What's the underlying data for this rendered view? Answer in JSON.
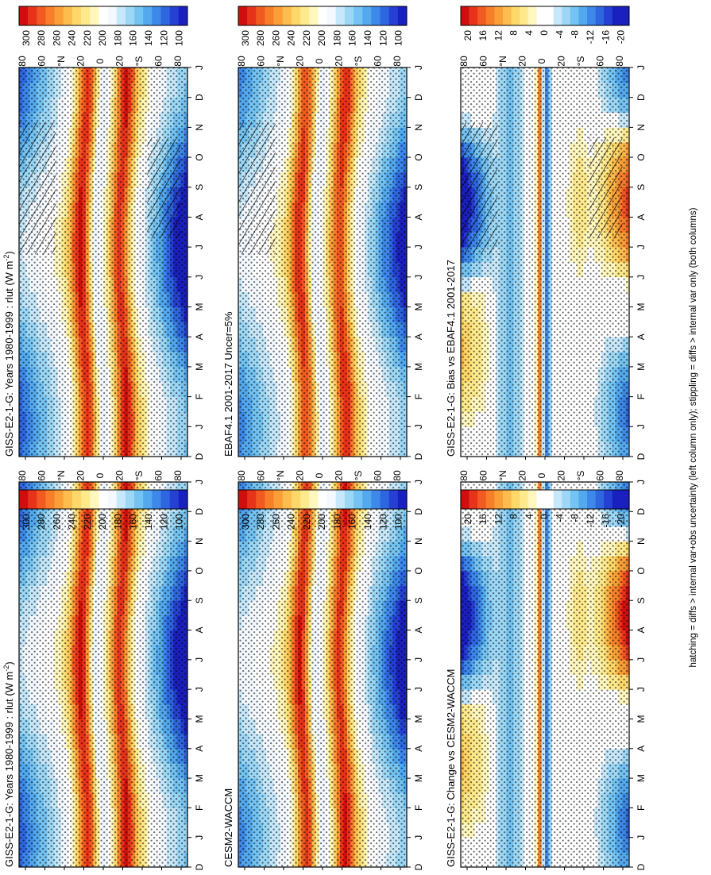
{
  "footnote": "hatching = diffs > internal var+obs uncertainty (left column only); stippling = diffs > internal var only (both columns)",
  "shared": {
    "months": [
      "D",
      "J",
      "F",
      "M",
      "A",
      "M",
      "J",
      "J",
      "A",
      "S",
      "O",
      "N",
      "D",
      "J"
    ],
    "lat_ticks": [
      "80",
      "60",
      "°N",
      "20",
      "0",
      "20",
      "°S",
      "60",
      "80"
    ]
  },
  "colorbars": {
    "absolute": {
      "ticks": [
        "300",
        "280",
        "260",
        "240",
        "220",
        "200",
        "180",
        "160",
        "140",
        "120",
        "100"
      ],
      "colors": [
        "#d10e0e",
        "#e8331b",
        "#f25a21",
        "#f77f2a",
        "#fa9f38",
        "#fcbc4e",
        "#fdd769",
        "#feea8d",
        "#fff7bd",
        "#ffffff",
        "#f3f9ff",
        "#c6e8fa",
        "#9cd8f6",
        "#74c3f2",
        "#53a8ee",
        "#3d88e8",
        "#2e66df",
        "#2540d2",
        "#1a1fbf"
      ]
    },
    "difference": {
      "ticks": [
        "20",
        "16",
        "12",
        "8",
        "4",
        "0",
        "-4",
        "-8",
        "-12",
        "-16",
        "-20"
      ],
      "colors": [
        "#d10e0e",
        "#e8331b",
        "#f25a21",
        "#f77f2a",
        "#fa9f38",
        "#fcbc4e",
        "#fdd769",
        "#feea8d",
        "#fff7bd",
        "#ffffff",
        "#ffffff",
        "#c6e8fa",
        "#9cd8f6",
        "#74c3f2",
        "#53a8ee",
        "#3d88e8",
        "#2e66df",
        "#2540d2",
        "#1a1fbf",
        "#1a1fbf"
      ]
    }
  },
  "chart_data": [
    {
      "type": "heatmap",
      "title": "GISS-E2-1-G: Years 1980-1999 : rlut (W m",
      "units_sup": "-2",
      "title_suffix": ")",
      "x_axis": "latitude (80°N to 80°S)",
      "y_axis": "month (D to J)",
      "colorbar": "absolute",
      "hatching": "Jul-Nov over ~60-80°N and ~65-85°S; scattered elsewhere",
      "stippling": "most of the domain",
      "approx_values": {
        "tropics_jul": 290,
        "tropics_jan": 285,
        "arctic_jan": 165,
        "antarctic_aug": 130,
        "equator_annual": 235
      }
    },
    {
      "type": "heatmap",
      "title": "GISS-E2-1-G: Years 1980-1999 : rlut (W m",
      "units_sup": "-2",
      "title_suffix": ")",
      "x_axis": "latitude (80°N to 80°S)",
      "y_axis": "month (D to J)",
      "colorbar": "absolute",
      "stippling": "most of the domain; absent at high latitudes in austral winter",
      "approx_values": {
        "tropics_jul": 290,
        "tropics_jan": 285,
        "arctic_jan": 165,
        "antarctic_aug": 130,
        "equator_annual": 235
      }
    },
    {
      "type": "heatmap",
      "title": "EBAF4.1 2001-2017 Uncer=5%",
      "x_axis": "latitude (80°N to 80°S)",
      "y_axis": "month (D to J)",
      "colorbar": "absolute",
      "hatching": "Jul-Nov ~60-80°N and scattered",
      "stippling": "widespread",
      "approx_values": {
        "tropics_jul": 285,
        "tropics_jan": 280,
        "arctic_jan": 175,
        "antarctic_aug": 140,
        "equator_annual": 240
      }
    },
    {
      "type": "heatmap",
      "title": "CESM2-WACCM",
      "x_axis": "latitude (80°N to 80°S)",
      "y_axis": "month (D to J)",
      "colorbar": "absolute",
      "stippling": "widespread",
      "approx_values": {
        "tropics_jul": 285,
        "tropics_jan": 285,
        "arctic_jan": 175,
        "antarctic_aug": 135,
        "equator_annual": 240
      }
    },
    {
      "type": "heatmap",
      "title": "GISS-E2-1-G: Bias vs EBAF4.1 2001-2017",
      "x_axis": "latitude (80°N to 80°S)",
      "y_axis": "month (D to J)",
      "colorbar": "difference",
      "hatching": "Jun-Nov 60-80°N (negative); Aug-Oct 60-80°S (positive)",
      "stippling": "widespread",
      "approx_values": {
        "arctic_jul_oct": -20,
        "antarctic_sep": 16,
        "equator_narrow_band": 16,
        "south_of_equator_band": -12,
        "arctic_mar": 10
      }
    },
    {
      "type": "heatmap",
      "title": "GISS-E2-1-G: Change vs CESM2-WACCM",
      "x_axis": "latitude (80°N to 80°S)",
      "y_axis": "month (D to J)",
      "colorbar": "difference",
      "stippling": "widespread",
      "approx_values": {
        "arctic_aug_oct": -20,
        "antarctic_oct": 20,
        "equator_narrow_band": 16,
        "south_of_equator_band": -12,
        "arctic_apr": 10
      }
    }
  ]
}
